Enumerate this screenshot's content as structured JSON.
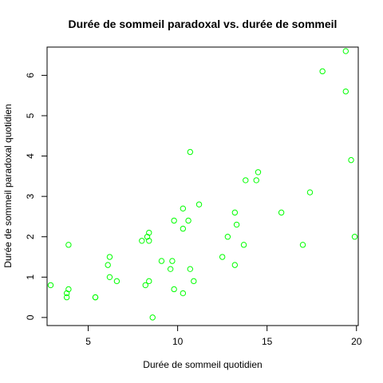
{
  "chart_data": {
    "type": "scatter",
    "title": "Durée de sommeil paradoxal vs. durée de sommeil",
    "xlabel": "Durée de sommeil quotidien",
    "ylabel": "Durée de sommeil paradoxal quotidien",
    "xlim": [
      2.7,
      20.1
    ],
    "ylim": [
      -0.2,
      6.7
    ],
    "x_ticks": [
      5,
      10,
      15,
      20
    ],
    "y_ticks": [
      0,
      1,
      2,
      3,
      4,
      5,
      6
    ],
    "grid": false,
    "point_color": "#00ff00",
    "marker": "open-circle",
    "points": [
      {
        "x": 2.9,
        "y": 0.8
      },
      {
        "x": 3.8,
        "y": 0.5
      },
      {
        "x": 3.8,
        "y": 0.6
      },
      {
        "x": 3.9,
        "y": 0.7
      },
      {
        "x": 3.9,
        "y": 1.8
      },
      {
        "x": 5.4,
        "y": 0.5
      },
      {
        "x": 5.4,
        "y": 0.5
      },
      {
        "x": 6.1,
        "y": 1.3
      },
      {
        "x": 6.2,
        "y": 1.0
      },
      {
        "x": 6.2,
        "y": 1.5
      },
      {
        "x": 6.6,
        "y": 0.9
      },
      {
        "x": 8.0,
        "y": 1.9
      },
      {
        "x": 8.2,
        "y": 0.8
      },
      {
        "x": 8.3,
        "y": 2.0
      },
      {
        "x": 8.4,
        "y": 2.1
      },
      {
        "x": 8.4,
        "y": 0.9
      },
      {
        "x": 8.4,
        "y": 1.9
      },
      {
        "x": 8.6,
        "y": 0.0
      },
      {
        "x": 9.1,
        "y": 1.4
      },
      {
        "x": 9.6,
        "y": 1.2
      },
      {
        "x": 9.7,
        "y": 1.4
      },
      {
        "x": 9.8,
        "y": 0.7
      },
      {
        "x": 9.8,
        "y": 2.4
      },
      {
        "x": 10.3,
        "y": 2.2
      },
      {
        "x": 10.3,
        "y": 2.7
      },
      {
        "x": 10.3,
        "y": 0.6
      },
      {
        "x": 10.6,
        "y": 2.4
      },
      {
        "x": 10.7,
        "y": 1.2
      },
      {
        "x": 10.7,
        "y": 4.1
      },
      {
        "x": 10.9,
        "y": 0.9
      },
      {
        "x": 11.2,
        "y": 2.8
      },
      {
        "x": 12.5,
        "y": 1.5
      },
      {
        "x": 12.8,
        "y": 2.0
      },
      {
        "x": 13.2,
        "y": 1.3
      },
      {
        "x": 13.2,
        "y": 2.6
      },
      {
        "x": 13.3,
        "y": 2.3
      },
      {
        "x": 13.7,
        "y": 1.8
      },
      {
        "x": 13.8,
        "y": 3.4
      },
      {
        "x": 14.4,
        "y": 3.4
      },
      {
        "x": 14.5,
        "y": 3.6
      },
      {
        "x": 15.8,
        "y": 2.6
      },
      {
        "x": 17.0,
        "y": 1.8
      },
      {
        "x": 17.4,
        "y": 3.1
      },
      {
        "x": 18.1,
        "y": 6.1
      },
      {
        "x": 19.4,
        "y": 6.6
      },
      {
        "x": 19.4,
        "y": 5.6
      },
      {
        "x": 19.7,
        "y": 3.9
      },
      {
        "x": 19.9,
        "y": 2.0
      }
    ]
  }
}
